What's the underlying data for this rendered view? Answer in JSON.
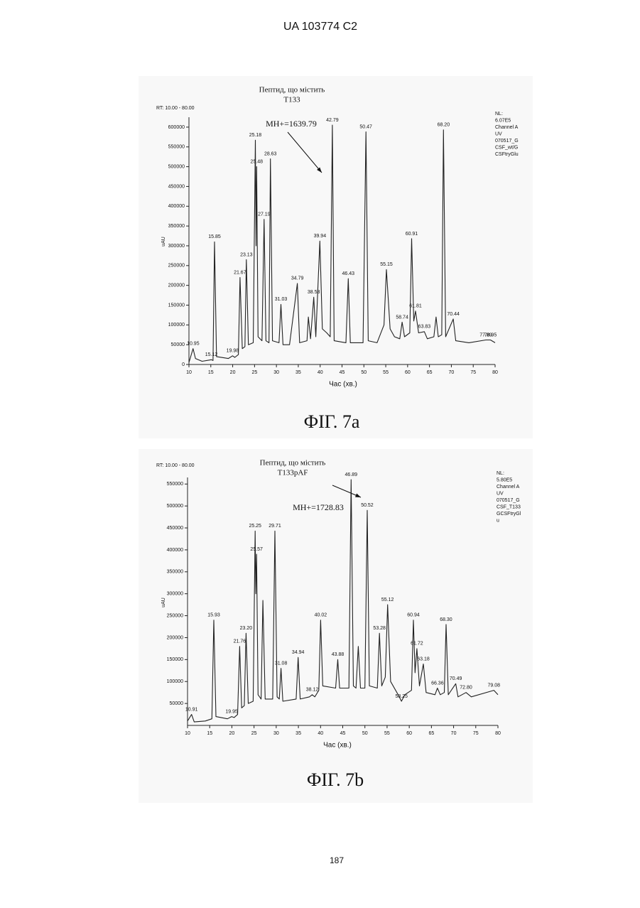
{
  "header": "UA 103774 C2",
  "page_number": "187",
  "chart_data": [
    {
      "type": "line",
      "caption": "ФІГ. 7a",
      "annotation": [
        "Пептид, що містить",
        "T133"
      ],
      "mass": "MH+=1639.79",
      "rt_range": "RT: 10.00 - 80.00",
      "notes": [
        "NL:",
        "6.07E5",
        "Channel A",
        "UV",
        "070517_G",
        "CSF_wt/G",
        "CSFtryGlu"
      ],
      "xlabel": "Час (хв.)",
      "ylabel": "uAU",
      "color": "#222222",
      "xlim": [
        10,
        80
      ],
      "xticks": [
        10,
        15,
        20,
        25,
        30,
        35,
        40,
        45,
        50,
        55,
        60,
        65,
        70,
        75,
        80
      ],
      "ylim": [
        0,
        625000
      ],
      "yticks": [
        0,
        50000,
        100000,
        150000,
        200000,
        250000,
        300000,
        350000,
        400000,
        450000,
        500000,
        550000,
        600000
      ],
      "x": [
        10,
        10.95,
        11.5,
        13,
        15.12,
        15.5,
        15.85,
        16.3,
        19,
        19.98,
        20.5,
        21.3,
        21.67,
        22.2,
        22.8,
        23.13,
        23.6,
        24.7,
        25.18,
        25.35,
        25.48,
        25.8,
        26.7,
        27.19,
        27.6,
        28.3,
        28.63,
        29.1,
        30.6,
        31.03,
        31.5,
        33,
        34.79,
        35.3,
        37,
        37.3,
        37.8,
        38.53,
        39,
        39.94,
        40.5,
        41.5,
        42.3,
        42.79,
        43.2,
        45.9,
        46.43,
        46.9,
        49.8,
        50.47,
        51,
        53,
        54.6,
        55.15,
        56,
        57,
        58.2,
        58.74,
        59.3,
        60.5,
        60.91,
        61.4,
        61.81,
        62.5,
        63.83,
        64.5,
        66,
        66.5,
        67,
        67.8,
        68.2,
        68.7,
        70.44,
        71,
        74,
        77.89,
        78.95,
        80
      ],
      "values": [
        5000,
        40000,
        15000,
        8000,
        12000,
        10000,
        310000,
        20000,
        15000,
        22000,
        18000,
        25000,
        220000,
        40000,
        45000,
        265000,
        50000,
        55000,
        567000,
        300000,
        500000,
        70000,
        60000,
        367000,
        60000,
        55000,
        520000,
        60000,
        55000,
        152000,
        50000,
        50000,
        205000,
        55000,
        60000,
        120000,
        65000,
        170000,
        70000,
        312000,
        90000,
        80000,
        70000,
        605000,
        60000,
        55000,
        217000,
        55000,
        55000,
        588000,
        60000,
        55000,
        100000,
        240000,
        90000,
        70000,
        65000,
        107000,
        70000,
        80000,
        318000,
        110000,
        135000,
        80000,
        83000,
        65000,
        70000,
        120000,
        70000,
        75000,
        593000,
        70000,
        115000,
        60000,
        55000,
        62000,
        62000,
        55000
      ],
      "peaks": [
        {
          "label": "10.95",
          "x": 10.95,
          "y": 40000
        },
        {
          "label": "15.12",
          "x": 15.12,
          "y": 12000
        },
        {
          "label": "15.85",
          "x": 15.85,
          "y": 310000
        },
        {
          "label": "19.98",
          "x": 19.98,
          "y": 22000
        },
        {
          "label": "21.67",
          "x": 21.67,
          "y": 220000
        },
        {
          "label": "23.13",
          "x": 23.13,
          "y": 265000
        },
        {
          "label": "25.18",
          "x": 25.18,
          "y": 567000
        },
        {
          "label": "25.48",
          "x": 25.48,
          "y": 500000
        },
        {
          "label": "27.19",
          "x": 27.19,
          "y": 367000
        },
        {
          "label": "28.63",
          "x": 28.63,
          "y": 520000
        },
        {
          "label": "31.03",
          "x": 31.03,
          "y": 152000
        },
        {
          "label": "34.79",
          "x": 34.79,
          "y": 205000
        },
        {
          "label": "38.53",
          "x": 38.53,
          "y": 170000
        },
        {
          "label": "39.94",
          "x": 39.94,
          "y": 312000
        },
        {
          "label": "42.79",
          "x": 42.79,
          "y": 605000
        },
        {
          "label": "46.43",
          "x": 46.43,
          "y": 217000
        },
        {
          "label": "50.47",
          "x": 50.47,
          "y": 588000
        },
        {
          "label": "55.15",
          "x": 55.15,
          "y": 240000
        },
        {
          "label": "58.74",
          "x": 58.74,
          "y": 107000
        },
        {
          "label": "60.91",
          "x": 60.91,
          "y": 318000
        },
        {
          "label": "61.81",
          "x": 61.81,
          "y": 135000
        },
        {
          "label": "63.83",
          "x": 63.83,
          "y": 83000
        },
        {
          "label": "68.20",
          "x": 68.2,
          "y": 593000
        },
        {
          "label": "70.44",
          "x": 70.44,
          "y": 115000
        },
        {
          "label": "77.89",
          "x": 77.89,
          "y": 62000
        },
        {
          "label": "78.95",
          "x": 78.95,
          "y": 62000
        }
      ]
    },
    {
      "type": "line",
      "caption": "ФІГ. 7b",
      "annotation": [
        "Пептид, що містить",
        "T133pAF"
      ],
      "mass": "MH+=1728.83",
      "rt_range": "RT: 10.00 - 80.00",
      "notes": [
        "NL:",
        "5.80E5",
        "Channel A",
        "UV",
        "070517_G",
        "CSF_T133",
        "GCSFtryGl",
        "u"
      ],
      "xlabel": "Час (хв.)",
      "ylabel": "uAU",
      "color": "#222222",
      "xlim": [
        10,
        80
      ],
      "xticks": [
        10,
        15,
        20,
        25,
        30,
        35,
        40,
        45,
        50,
        55,
        60,
        65,
        70,
        75,
        80
      ],
      "ylim": [
        0,
        565000
      ],
      "yticks": [
        50000,
        100000,
        150000,
        200000,
        250000,
        300000,
        350000,
        400000,
        450000,
        500000,
        550000
      ],
      "x": [
        10,
        10.91,
        11.5,
        14,
        15.5,
        15.93,
        16.4,
        19,
        19.95,
        20.5,
        21.3,
        21.76,
        22.2,
        22.8,
        23.2,
        23.7,
        24.8,
        25.25,
        25.4,
        25.57,
        25.9,
        26.6,
        27,
        27.5,
        29.2,
        29.71,
        30.2,
        30.7,
        31.08,
        31.5,
        34.5,
        34.94,
        35.4,
        37.5,
        38.12,
        38.7,
        39.6,
        40.02,
        40.5,
        43.4,
        43.88,
        44.3,
        46.4,
        46.89,
        47.4,
        48,
        48.5,
        49,
        50,
        50.52,
        51,
        52.8,
        53.28,
        53.8,
        54.6,
        55.12,
        55.8,
        57.5,
        58.25,
        59,
        60.5,
        60.94,
        61.3,
        61.72,
        62.3,
        63.18,
        63.8,
        65.8,
        66.36,
        67,
        67.9,
        68.3,
        68.8,
        70.49,
        71,
        72.8,
        74,
        79.08,
        80
      ],
      "values": [
        10000,
        25000,
        8000,
        10000,
        15000,
        240000,
        20000,
        15000,
        20000,
        18000,
        25000,
        180000,
        40000,
        45000,
        210000,
        50000,
        55000,
        443000,
        300000,
        390000,
        70000,
        60000,
        285000,
        60000,
        60000,
        443000,
        65000,
        60000,
        130000,
        55000,
        60000,
        155000,
        60000,
        65000,
        70000,
        65000,
        80000,
        240000,
        90000,
        85000,
        150000,
        85000,
        85000,
        560000,
        90000,
        85000,
        180000,
        85000,
        85000,
        490000,
        90000,
        85000,
        210000,
        90000,
        110000,
        275000,
        100000,
        70000,
        55000,
        70000,
        80000,
        240000,
        120000,
        175000,
        90000,
        140000,
        75000,
        70000,
        85000,
        70000,
        75000,
        230000,
        70000,
        95000,
        65000,
        75000,
        65000,
        80000,
        70000
      ],
      "peaks": [
        {
          "label": "10.91",
          "x": 10.91,
          "y": 25000
        },
        {
          "label": "15.93",
          "x": 15.93,
          "y": 240000
        },
        {
          "label": "19.95",
          "x": 19.95,
          "y": 20000
        },
        {
          "label": "21.76",
          "x": 21.76,
          "y": 180000
        },
        {
          "label": "23.20",
          "x": 23.2,
          "y": 210000
        },
        {
          "label": "25.25",
          "x": 25.25,
          "y": 443000
        },
        {
          "label": "25.57",
          "x": 25.57,
          "y": 390000
        },
        {
          "label": "29.71",
          "x": 29.71,
          "y": 443000
        },
        {
          "label": "31.08",
          "x": 31.08,
          "y": 130000
        },
        {
          "label": "34.94",
          "x": 34.94,
          "y": 155000
        },
        {
          "label": "38.12",
          "x": 38.12,
          "y": 70000
        },
        {
          "label": "40.02",
          "x": 40.02,
          "y": 240000
        },
        {
          "label": "43.88",
          "x": 43.88,
          "y": 150000
        },
        {
          "label": "46.89",
          "x": 46.89,
          "y": 560000
        },
        {
          "label": "50.52",
          "x": 50.52,
          "y": 490000
        },
        {
          "label": "53.28",
          "x": 53.28,
          "y": 210000
        },
        {
          "label": "55.12",
          "x": 55.12,
          "y": 275000
        },
        {
          "label": "58.25",
          "x": 58.25,
          "y": 55000
        },
        {
          "label": "60.94",
          "x": 60.94,
          "y": 240000
        },
        {
          "label": "61.72",
          "x": 61.72,
          "y": 175000
        },
        {
          "label": "63.18",
          "x": 63.18,
          "y": 140000
        },
        {
          "label": "66.36",
          "x": 66.36,
          "y": 85000
        },
        {
          "label": "68.30",
          "x": 68.3,
          "y": 230000
        },
        {
          "label": "70.49",
          "x": 70.49,
          "y": 95000
        },
        {
          "label": "72.80",
          "x": 72.8,
          "y": 75000
        },
        {
          "label": "79.08",
          "x": 79.08,
          "y": 80000
        }
      ]
    }
  ]
}
